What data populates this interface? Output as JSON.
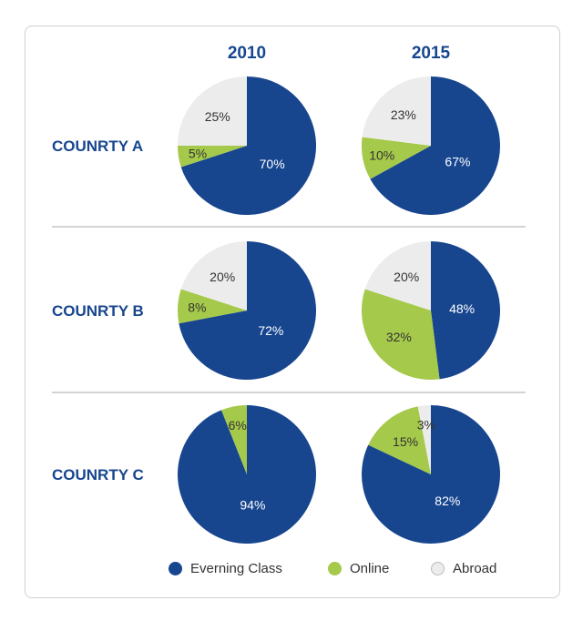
{
  "chart_data": {
    "type": "pie",
    "columns": [
      "2010",
      "2015"
    ],
    "rows": [
      "COUNRTY A",
      "COUNRTY B",
      "COUNRTY C"
    ],
    "categories": [
      "Everning Class",
      "Online",
      "Abroad"
    ],
    "colors": {
      "Everning Class": "#17468f",
      "Online": "#a5c94a",
      "Abroad": "#ececec"
    },
    "pies": [
      {
        "row": "COUNRTY A",
        "year": "2010",
        "values": [
          70,
          5,
          25
        ]
      },
      {
        "row": "COUNRTY A",
        "year": "2015",
        "values": [
          67,
          10,
          23
        ]
      },
      {
        "row": "COUNRTY B",
        "year": "2010",
        "values": [
          72,
          8,
          20
        ]
      },
      {
        "row": "COUNRTY B",
        "year": "2015",
        "values": [
          48,
          32,
          20
        ]
      },
      {
        "row": "COUNRTY C",
        "year": "2010",
        "values": [
          94,
          6,
          0
        ]
      },
      {
        "row": "COUNRTY C",
        "year": "2015",
        "values": [
          82,
          15,
          3
        ]
      }
    ],
    "legend_position": "bottom"
  }
}
